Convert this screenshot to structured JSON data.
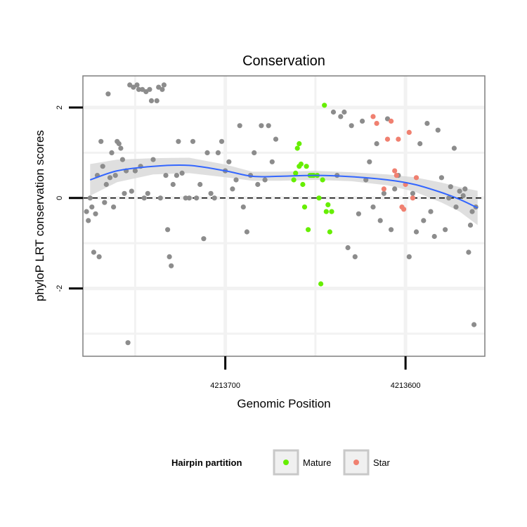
{
  "chart_data": {
    "type": "scatter",
    "title": "Conservation",
    "xlabel": "Genomic Position",
    "ylabel": "phyloP LRT conservation scores",
    "x_reversed": true,
    "xlim": [
      4213779,
      4213556
    ],
    "ylim": [
      -3.5,
      2.7
    ],
    "x_ticks": [
      {
        "value": 4213700,
        "label": "4213700"
      },
      {
        "value": 4213600,
        "label": "4213600"
      }
    ],
    "y_ticks": [
      {
        "value": 2,
        "label": "2"
      },
      {
        "value": 0,
        "label": "0"
      },
      {
        "value": -2,
        "label": "-2"
      }
    ],
    "minor_x": [
      4213750,
      4213650
    ],
    "minor_y": [
      1,
      -1,
      -3
    ],
    "reference_line": {
      "y": 0,
      "style": "dashed"
    },
    "colors": {
      "other": "#8c8c8c",
      "mature": "#66ee00",
      "star": "#f08070",
      "smooth": "#3366ff",
      "band": "#d9d9d9",
      "panel_border": "#7f7f7f",
      "grid": "#f2f2f2"
    },
    "legend": {
      "title": "Hairpin partition",
      "position": "bottom",
      "entries": [
        {
          "name": "Mature",
          "color": "#66ee00"
        },
        {
          "name": "Star",
          "color": "#f08070"
        }
      ]
    },
    "smooth": {
      "x": [
        4213775,
        4213760,
        4213740,
        4213720,
        4213700,
        4213685,
        4213670,
        4213650,
        4213630,
        4213610,
        4213595,
        4213580,
        4213570,
        4213560
      ],
      "y": [
        0.4,
        0.6,
        0.7,
        0.72,
        0.6,
        0.48,
        0.48,
        0.5,
        0.47,
        0.4,
        0.3,
        0.12,
        -0.03,
        -0.22
      ],
      "lower": [
        0.05,
        0.35,
        0.52,
        0.55,
        0.46,
        0.38,
        0.38,
        0.4,
        0.37,
        0.28,
        0.14,
        -0.1,
        -0.3,
        -0.6
      ],
      "upper": [
        0.75,
        0.85,
        0.88,
        0.89,
        0.74,
        0.58,
        0.58,
        0.6,
        0.57,
        0.52,
        0.46,
        0.34,
        0.24,
        0.16
      ]
    },
    "series": [
      {
        "name": "Other",
        "points": [
          [
            4213777,
            -0.3
          ],
          [
            4213776,
            -0.5
          ],
          [
            4213775,
            0.0
          ],
          [
            4213774,
            -0.2
          ],
          [
            4213773,
            -1.2
          ],
          [
            4213772,
            -0.35
          ],
          [
            4213771,
            0.5
          ],
          [
            4213770,
            -1.3
          ],
          [
            4213769,
            1.25
          ],
          [
            4213768,
            0.7
          ],
          [
            4213767,
            -0.1
          ],
          [
            4213766,
            0.3
          ],
          [
            4213765,
            2.3
          ],
          [
            4213764,
            0.45
          ],
          [
            4213763,
            1.0
          ],
          [
            4213762,
            -0.2
          ],
          [
            4213761,
            0.5
          ],
          [
            4213760,
            1.25
          ],
          [
            4213759,
            1.2
          ],
          [
            4213758,
            1.1
          ],
          [
            4213757,
            0.85
          ],
          [
            4213756,
            0.1
          ],
          [
            4213755,
            0.6
          ],
          [
            4213754,
            -3.2
          ],
          [
            4213753,
            2.5
          ],
          [
            4213752,
            0.15
          ],
          [
            4213751,
            2.45
          ],
          [
            4213750,
            0.6
          ],
          [
            4213749,
            2.5
          ],
          [
            4213748,
            2.4
          ],
          [
            4213747,
            0.7
          ],
          [
            4213746,
            2.4
          ],
          [
            4213745,
            0.0
          ],
          [
            4213744,
            2.35
          ],
          [
            4213743,
            0.1
          ],
          [
            4213742,
            2.4
          ],
          [
            4213741,
            2.15
          ],
          [
            4213740,
            0.85
          ],
          [
            4213738,
            2.15
          ],
          [
            4213737,
            2.45
          ],
          [
            4213736,
            0.0
          ],
          [
            4213735,
            2.4
          ],
          [
            4213734,
            2.5
          ],
          [
            4213733,
            0.5
          ],
          [
            4213732,
            -0.7
          ],
          [
            4213731,
            -1.3
          ],
          [
            4213730,
            -1.5
          ],
          [
            4213729,
            0.3
          ],
          [
            4213727,
            0.5
          ],
          [
            4213726,
            1.25
          ],
          [
            4213724,
            0.55
          ],
          [
            4213722,
            0.0
          ],
          [
            4213720,
            0.0
          ],
          [
            4213718,
            1.25
          ],
          [
            4213716,
            0.0
          ],
          [
            4213714,
            0.3
          ],
          [
            4213712,
            -0.9
          ],
          [
            4213710,
            1.0
          ],
          [
            4213708,
            0.1
          ],
          [
            4213706,
            0.0
          ],
          [
            4213704,
            1.0
          ],
          [
            4213702,
            1.25
          ],
          [
            4213700,
            0.6
          ],
          [
            4213698,
            0.8
          ],
          [
            4213696,
            0.2
          ],
          [
            4213694,
            0.4
          ],
          [
            4213692,
            1.6
          ],
          [
            4213690,
            -0.2
          ],
          [
            4213688,
            -0.75
          ],
          [
            4213686,
            0.5
          ],
          [
            4213684,
            1.0
          ],
          [
            4213682,
            0.3
          ],
          [
            4213680,
            1.6
          ],
          [
            4213678,
            0.4
          ],
          [
            4213676,
            1.6
          ],
          [
            4213674,
            0.8
          ],
          [
            4213672,
            1.3
          ],
          [
            4213640,
            1.9
          ],
          [
            4213638,
            0.5
          ],
          [
            4213636,
            1.8
          ],
          [
            4213634,
            1.9
          ],
          [
            4213632,
            -1.1
          ],
          [
            4213630,
            1.6
          ],
          [
            4213628,
            -1.3
          ],
          [
            4213626,
            -0.35
          ],
          [
            4213624,
            1.7
          ],
          [
            4213622,
            0.4
          ],
          [
            4213620,
            0.8
          ],
          [
            4213618,
            -0.2
          ],
          [
            4213616,
            1.2
          ],
          [
            4213614,
            -0.5
          ],
          [
            4213612,
            0.1
          ],
          [
            4213610,
            1.75
          ],
          [
            4213608,
            -0.7
          ],
          [
            4213606,
            0.2
          ],
          [
            4213604,
            0.5
          ],
          [
            4213598,
            -1.3
          ],
          [
            4213596,
            0.1
          ],
          [
            4213594,
            -0.75
          ],
          [
            4213592,
            1.2
          ],
          [
            4213590,
            -0.5
          ],
          [
            4213588,
            1.65
          ],
          [
            4213586,
            -0.3
          ],
          [
            4213584,
            -0.85
          ],
          [
            4213582,
            1.5
          ],
          [
            4213580,
            0.45
          ],
          [
            4213578,
            -0.7
          ],
          [
            4213576,
            0.0
          ],
          [
            4213575,
            0.25
          ],
          [
            4213573,
            1.1
          ],
          [
            4213572,
            -0.2
          ],
          [
            4213570,
            0.15
          ],
          [
            4213568,
            0.05
          ],
          [
            4213567,
            0.2
          ],
          [
            4213565,
            -1.2
          ],
          [
            4213564,
            -0.6
          ],
          [
            4213563,
            -0.3
          ],
          [
            4213562,
            -2.8
          ],
          [
            4213561,
            -0.2
          ]
        ]
      },
      {
        "name": "Mature",
        "points": [
          [
            4213662,
            0.4
          ],
          [
            4213661,
            0.55
          ],
          [
            4213660,
            1.1
          ],
          [
            4213659,
            0.7
          ],
          [
            4213658,
            0.75
          ],
          [
            4213657,
            0.3
          ],
          [
            4213656,
            -0.2
          ],
          [
            4213655,
            0.7
          ],
          [
            4213654,
            -0.7
          ],
          [
            4213653,
            0.5
          ],
          [
            4213651,
            0.5
          ],
          [
            4213649,
            0.5
          ],
          [
            4213648,
            0.0
          ],
          [
            4213647,
            -1.9
          ],
          [
            4213646,
            0.4
          ],
          [
            4213645,
            2.05
          ],
          [
            4213644,
            -0.3
          ],
          [
            4213643,
            -0.15
          ],
          [
            4213642,
            -0.75
          ],
          [
            4213641,
            -0.3
          ],
          [
            4213659,
            1.2
          ],
          [
            4213652,
            0.5
          ]
        ]
      },
      {
        "name": "Star",
        "points": [
          [
            4213618,
            1.8
          ],
          [
            4213616,
            1.65
          ],
          [
            4213612,
            0.2
          ],
          [
            4213610,
            1.3
          ],
          [
            4213608,
            1.7
          ],
          [
            4213606,
            0.6
          ],
          [
            4213604,
            1.3
          ],
          [
            4213602,
            -0.2
          ],
          [
            4213600,
            0.3
          ],
          [
            4213598,
            1.45
          ],
          [
            4213596,
            0.0
          ],
          [
            4213594,
            0.45
          ],
          [
            4213605,
            0.5
          ],
          [
            4213601,
            -0.25
          ]
        ]
      }
    ]
  }
}
